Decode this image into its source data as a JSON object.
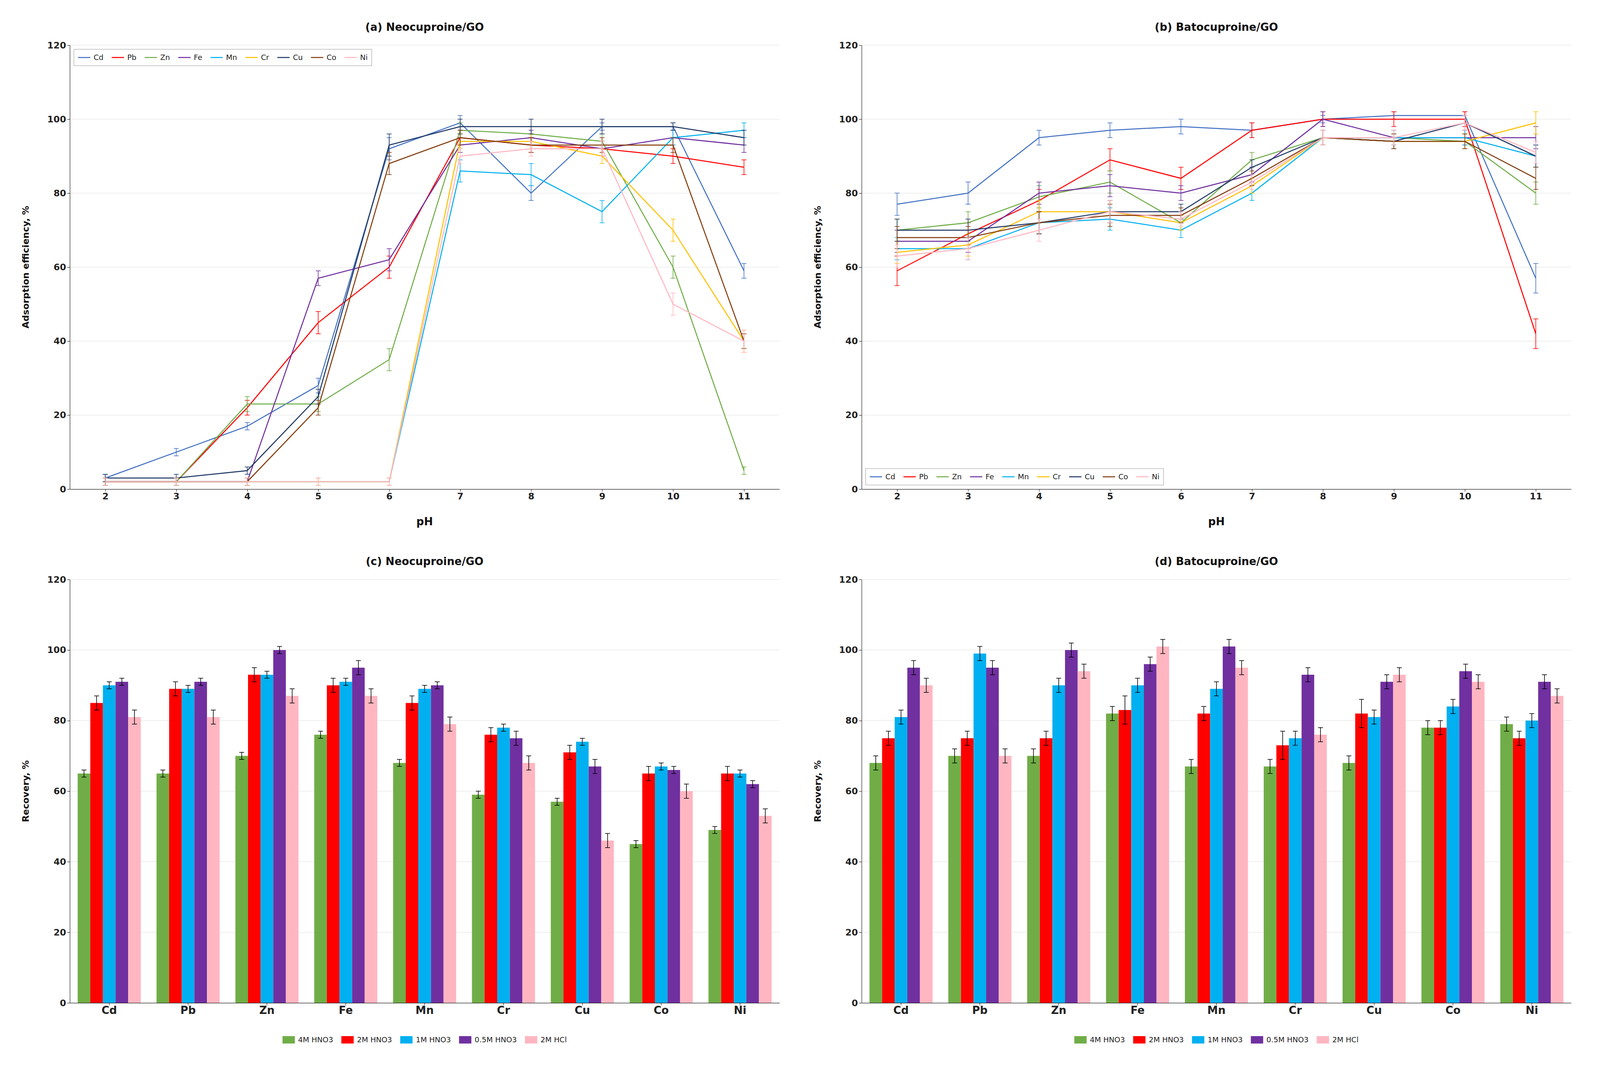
{
  "chart_data": [
    {
      "type": "line",
      "title": "(a) Neocuproine/GO",
      "xlabel": "pH",
      "ylabel": "Adsorption efficiency, %",
      "x": [
        2,
        3,
        4,
        5,
        6,
        7,
        8,
        9,
        10,
        11
      ],
      "xlim": [
        1.5,
        11.5
      ],
      "xticks": [
        2,
        3,
        4,
        5,
        6,
        7,
        8,
        9,
        10,
        11
      ],
      "ylim": [
        0,
        120
      ],
      "yticks": [
        0,
        20,
        40,
        60,
        80,
        100,
        120
      ],
      "grid": true,
      "legend": "upper left",
      "series": [
        {
          "name": "Cd",
          "color": "#4472C4",
          "values": [
            3,
            10,
            17,
            28,
            92,
            99,
            80,
            98,
            98,
            59
          ],
          "errors": [
            1,
            1,
            1,
            2,
            3,
            2,
            2,
            1,
            1,
            2
          ]
        },
        {
          "name": "Pb",
          "color": "#FF0000",
          "values": [
            2,
            2,
            22,
            45,
            60,
            95,
            93,
            92,
            90,
            87
          ],
          "errors": [
            1,
            1,
            2,
            3,
            3,
            2,
            2,
            2,
            2,
            2
          ]
        },
        {
          "name": "Zn",
          "color": "#70AD47",
          "values": [
            2,
            2,
            23,
            23,
            35,
            97,
            96,
            94,
            60,
            5
          ],
          "errors": [
            1,
            1,
            2,
            2,
            3,
            2,
            2,
            2,
            3,
            1
          ]
        },
        {
          "name": "Fe",
          "color": "#7030A0",
          "values": [
            2,
            2,
            2,
            57,
            62,
            93,
            95,
            92,
            95,
            93
          ],
          "errors": [
            1,
            1,
            1,
            2,
            3,
            2,
            2,
            2,
            2,
            2
          ]
        },
        {
          "name": "Mn",
          "color": "#00B0F0",
          "values": [
            2,
            2,
            2,
            2,
            2,
            86,
            85,
            75,
            95,
            97
          ],
          "errors": [
            1,
            1,
            1,
            1,
            1,
            3,
            3,
            3,
            2,
            2
          ]
        },
        {
          "name": "Cr",
          "color": "#FFC000",
          "values": [
            2,
            2,
            2,
            2,
            2,
            94,
            94,
            90,
            70,
            40
          ],
          "errors": [
            1,
            1,
            1,
            1,
            1,
            2,
            2,
            2,
            3,
            3
          ]
        },
        {
          "name": "Cu",
          "color": "#1F3864",
          "values": [
            3,
            3,
            5,
            25,
            93,
            98,
            98,
            98,
            98,
            95
          ],
          "errors": [
            1,
            1,
            1,
            2,
            3,
            2,
            2,
            2,
            1,
            2
          ]
        },
        {
          "name": "Co",
          "color": "#843C0C",
          "values": [
            2,
            2,
            2,
            22,
            88,
            95,
            93,
            93,
            93,
            40
          ],
          "errors": [
            1,
            1,
            1,
            2,
            3,
            2,
            2,
            2,
            2,
            2
          ]
        },
        {
          "name": "Ni",
          "color": "#FFB6C1",
          "values": [
            2,
            2,
            2,
            2,
            2,
            90,
            92,
            92,
            50,
            40
          ],
          "errors": [
            1,
            1,
            1,
            1,
            1,
            2,
            2,
            2,
            3,
            3
          ]
        }
      ]
    },
    {
      "type": "line",
      "title": "(b) Batocuproine/GO",
      "xlabel": "pH",
      "ylabel": "Adsorption efficiency, %",
      "x": [
        2,
        3,
        4,
        5,
        6,
        7,
        8,
        9,
        10,
        11
      ],
      "xlim": [
        1.5,
        11.5
      ],
      "xticks": [
        2,
        3,
        4,
        5,
        6,
        7,
        8,
        9,
        10,
        11
      ],
      "ylim": [
        0,
        120
      ],
      "yticks": [
        0,
        20,
        40,
        60,
        80,
        100,
        120
      ],
      "grid": true,
      "legend": "lower left",
      "series": [
        {
          "name": "Cd",
          "color": "#4472C4",
          "values": [
            77,
            80,
            95,
            97,
            98,
            97,
            100,
            101,
            101,
            57
          ],
          "errors": [
            3,
            3,
            2,
            2,
            2,
            2,
            1,
            1,
            1,
            4
          ]
        },
        {
          "name": "Pb",
          "color": "#FF0000",
          "values": [
            59,
            69,
            78,
            89,
            84,
            97,
            100,
            100,
            100,
            42
          ],
          "errors": [
            4,
            3,
            3,
            3,
            3,
            2,
            2,
            2,
            2,
            4
          ]
        },
        {
          "name": "Zn",
          "color": "#70AD47",
          "values": [
            70,
            72,
            79,
            83,
            72,
            89,
            95,
            95,
            94,
            80
          ],
          "errors": [
            3,
            3,
            3,
            3,
            2,
            2,
            2,
            2,
            2,
            3
          ]
        },
        {
          "name": "Fe",
          "color": "#7030A0",
          "values": [
            67,
            67,
            80,
            82,
            80,
            85,
            100,
            95,
            95,
            95
          ],
          "errors": [
            3,
            3,
            3,
            3,
            2,
            2,
            2,
            2,
            2,
            3
          ]
        },
        {
          "name": "Mn",
          "color": "#00B0F0",
          "values": [
            65,
            65,
            72,
            73,
            70,
            80,
            95,
            95,
            95,
            90
          ],
          "errors": [
            3,
            3,
            3,
            3,
            2,
            2,
            2,
            2,
            2,
            3
          ]
        },
        {
          "name": "Cr",
          "color": "#FFC000",
          "values": [
            64,
            66,
            75,
            75,
            72,
            82,
            95,
            94,
            94,
            99
          ],
          "errors": [
            3,
            3,
            3,
            3,
            2,
            2,
            2,
            2,
            2,
            3
          ]
        },
        {
          "name": "Cu",
          "color": "#1F3864",
          "values": [
            70,
            70,
            72,
            75,
            75,
            87,
            95,
            94,
            99,
            90
          ],
          "errors": [
            3,
            3,
            3,
            3,
            2,
            2,
            2,
            2,
            2,
            3
          ]
        },
        {
          "name": "Co",
          "color": "#843C0C",
          "values": [
            68,
            68,
            72,
            74,
            74,
            84,
            95,
            94,
            94,
            84
          ],
          "errors": [
            3,
            3,
            3,
            3,
            2,
            2,
            2,
            2,
            2,
            3
          ]
        },
        {
          "name": "Ni",
          "color": "#FFB6C1",
          "values": [
            63,
            65,
            70,
            75,
            73,
            83,
            95,
            95,
            99,
            91
          ],
          "errors": [
            3,
            3,
            3,
            3,
            2,
            2,
            2,
            2,
            2,
            3
          ]
        }
      ]
    },
    {
      "type": "bar",
      "title": "(c) Neocuproine/GO",
      "ylabel": "Recovery, %",
      "categories": [
        "Cd",
        "Pb",
        "Zn",
        "Fe",
        "Mn",
        "Cr",
        "Cu",
        "Co",
        "Ni"
      ],
      "ylim": [
        0,
        120
      ],
      "yticks": [
        0,
        20,
        40,
        60,
        80,
        100,
        120
      ],
      "grid": true,
      "legend": "bottom",
      "series": [
        {
          "name": "4M HNO3",
          "color": "#70AD47",
          "values": [
            65,
            65,
            70,
            76,
            68,
            59,
            57,
            45,
            49
          ],
          "errors": [
            1,
            1,
            1,
            1,
            1,
            1,
            1,
            1,
            1
          ]
        },
        {
          "name": "2M HNO3",
          "color": "#FF0000",
          "values": [
            85,
            89,
            93,
            90,
            85,
            76,
            71,
            65,
            65
          ],
          "errors": [
            2,
            2,
            2,
            2,
            2,
            2,
            2,
            2,
            2
          ]
        },
        {
          "name": "1M HNO3",
          "color": "#00B0F0",
          "values": [
            90,
            89,
            93,
            91,
            89,
            78,
            74,
            67,
            65
          ],
          "errors": [
            1,
            1,
            1,
            1,
            1,
            1,
            1,
            1,
            1
          ]
        },
        {
          "name": "0.5M HNO3",
          "color": "#7030A0",
          "values": [
            91,
            91,
            100,
            95,
            90,
            75,
            67,
            66,
            62
          ],
          "errors": [
            1,
            1,
            1,
            2,
            1,
            2,
            2,
            1,
            1
          ]
        },
        {
          "name": "2M HCl",
          "color": "#FFB6C1",
          "values": [
            81,
            81,
            87,
            87,
            79,
            68,
            46,
            60,
            53
          ],
          "errors": [
            2,
            2,
            2,
            2,
            2,
            2,
            2,
            2,
            2
          ]
        }
      ]
    },
    {
      "type": "bar",
      "title": "(d) Batocuproine/GO",
      "ylabel": "Recovery, %",
      "categories": [
        "Cd",
        "Pb",
        "Zn",
        "Fe",
        "Mn",
        "Cr",
        "Cu",
        "Co",
        "Ni"
      ],
      "ylim": [
        0,
        120
      ],
      "yticks": [
        0,
        20,
        40,
        60,
        80,
        100,
        120
      ],
      "grid": true,
      "legend": "bottom",
      "series": [
        {
          "name": "4M HNO3",
          "color": "#70AD47",
          "values": [
            68,
            70,
            70,
            82,
            67,
            67,
            68,
            78,
            79
          ],
          "errors": [
            2,
            2,
            2,
            2,
            2,
            2,
            2,
            2,
            2
          ]
        },
        {
          "name": "2M HNO3",
          "color": "#FF0000",
          "values": [
            75,
            75,
            75,
            83,
            82,
            73,
            82,
            78,
            75
          ],
          "errors": [
            2,
            2,
            2,
            4,
            2,
            4,
            4,
            2,
            2
          ]
        },
        {
          "name": "1M HNO3",
          "color": "#00B0F0",
          "values": [
            81,
            99,
            90,
            90,
            89,
            75,
            81,
            84,
            80
          ],
          "errors": [
            2,
            2,
            2,
            2,
            2,
            2,
            2,
            2,
            2
          ]
        },
        {
          "name": "0.5M HNO3",
          "color": "#7030A0",
          "values": [
            95,
            95,
            100,
            96,
            101,
            93,
            91,
            94,
            91
          ],
          "errors": [
            2,
            2,
            2,
            2,
            2,
            2,
            2,
            2,
            2
          ]
        },
        {
          "name": "2M HCl",
          "color": "#FFB6C1",
          "values": [
            90,
            70,
            94,
            101,
            95,
            76,
            93,
            91,
            87
          ],
          "errors": [
            2,
            2,
            2,
            2,
            2,
            2,
            2,
            2,
            2
          ]
        }
      ]
    }
  ]
}
